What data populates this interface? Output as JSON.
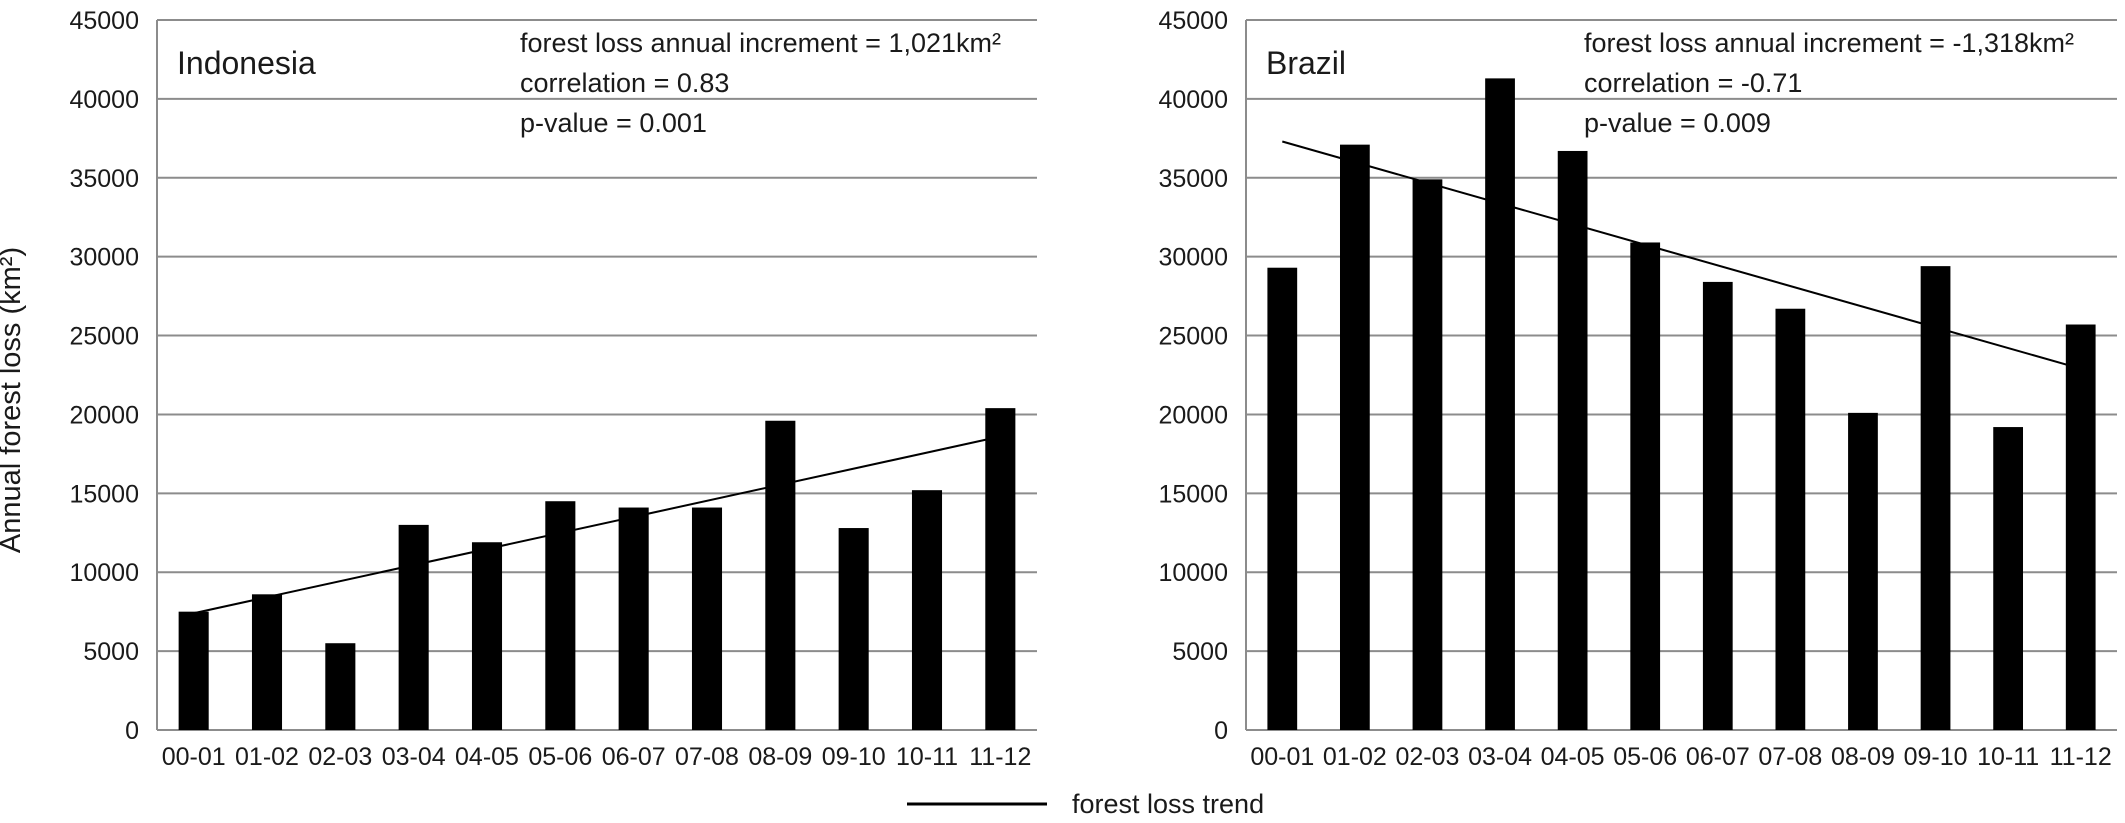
{
  "y_axis_label": "Annual forest loss (km²)",
  "legend": {
    "label": "forest loss trend"
  },
  "chart_data": [
    {
      "type": "bar",
      "title": "Indonesia",
      "categories": [
        "00-01",
        "01-02",
        "02-03",
        "03-04",
        "04-05",
        "05-06",
        "06-07",
        "07-08",
        "08-09",
        "09-10",
        "10-11",
        "11-12"
      ],
      "series": [
        {
          "values": [
            7500,
            8600,
            5500,
            13000,
            11900,
            14500,
            14100,
            14100,
            19600,
            12800,
            15200,
            20400
          ]
        }
      ],
      "trend": {
        "start": 7400,
        "end": 18600
      },
      "annotations": [
        "forest loss annual increment = 1,021km²",
        "correlation = 0.83",
        "p-value = 0.001"
      ],
      "ylim": [
        0,
        45000
      ],
      "yticks": [
        "0",
        "5000",
        "10000",
        "15000",
        "20000",
        "25000",
        "30000",
        "35000",
        "40000",
        "45000"
      ],
      "grid": true
    },
    {
      "type": "bar",
      "title": "Brazil",
      "categories": [
        "00-01",
        "01-02",
        "02-03",
        "03-04",
        "04-05",
        "05-06",
        "06-07",
        "07-08",
        "08-09",
        "09-10",
        "10-11",
        "11-12"
      ],
      "series": [
        {
          "values": [
            29300,
            37100,
            34900,
            41300,
            36700,
            30900,
            28400,
            26700,
            20100,
            29400,
            19200,
            25700
          ]
        }
      ],
      "trend": {
        "start": 37300,
        "end": 22900
      },
      "annotations": [
        "forest loss annual increment = -1,318km²",
        "correlation = -0.71",
        "p-value = 0.009"
      ],
      "ylim": [
        0,
        45000
      ],
      "yticks": [
        "0",
        "5000",
        "10000",
        "15000",
        "20000",
        "25000",
        "30000",
        "35000",
        "40000",
        "45000"
      ],
      "grid": true
    }
  ]
}
